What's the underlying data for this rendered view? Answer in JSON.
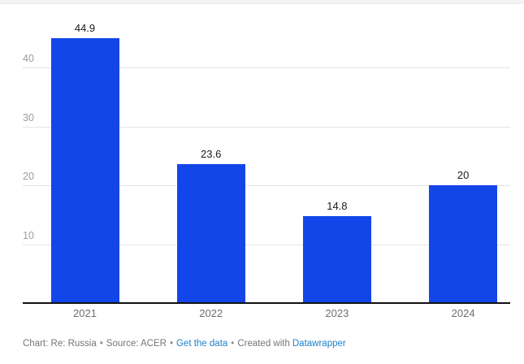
{
  "chart_data": {
    "type": "bar",
    "categories": [
      "2021",
      "2022",
      "2023",
      "2024"
    ],
    "values": [
      44.9,
      23.6,
      14.8,
      20
    ],
    "value_labels": [
      "44.9",
      "23.6",
      "14.8",
      "20"
    ],
    "title": "",
    "xlabel": "",
    "ylabel": "",
    "yticks": [
      10,
      20,
      30,
      40
    ],
    "ylim": [
      0,
      46
    ],
    "grid": true,
    "legend": "none",
    "bar_color": "#1246e9",
    "gridline_color": "#e4e4e4",
    "baseline_color": "#111111",
    "value_label_color": "#1a1a1a",
    "x_tick_color": "#6e6e6e",
    "y_tick_color": "#9c9c9c"
  },
  "footer": {
    "chart_credit": "Chart: Re: Russia",
    "source_credit": "Source: ACER",
    "get_data_link": "Get the data",
    "created_with": "Created with",
    "tool_link": "Datawrapper",
    "separator": "•",
    "link_color": "#1d81c9"
  }
}
